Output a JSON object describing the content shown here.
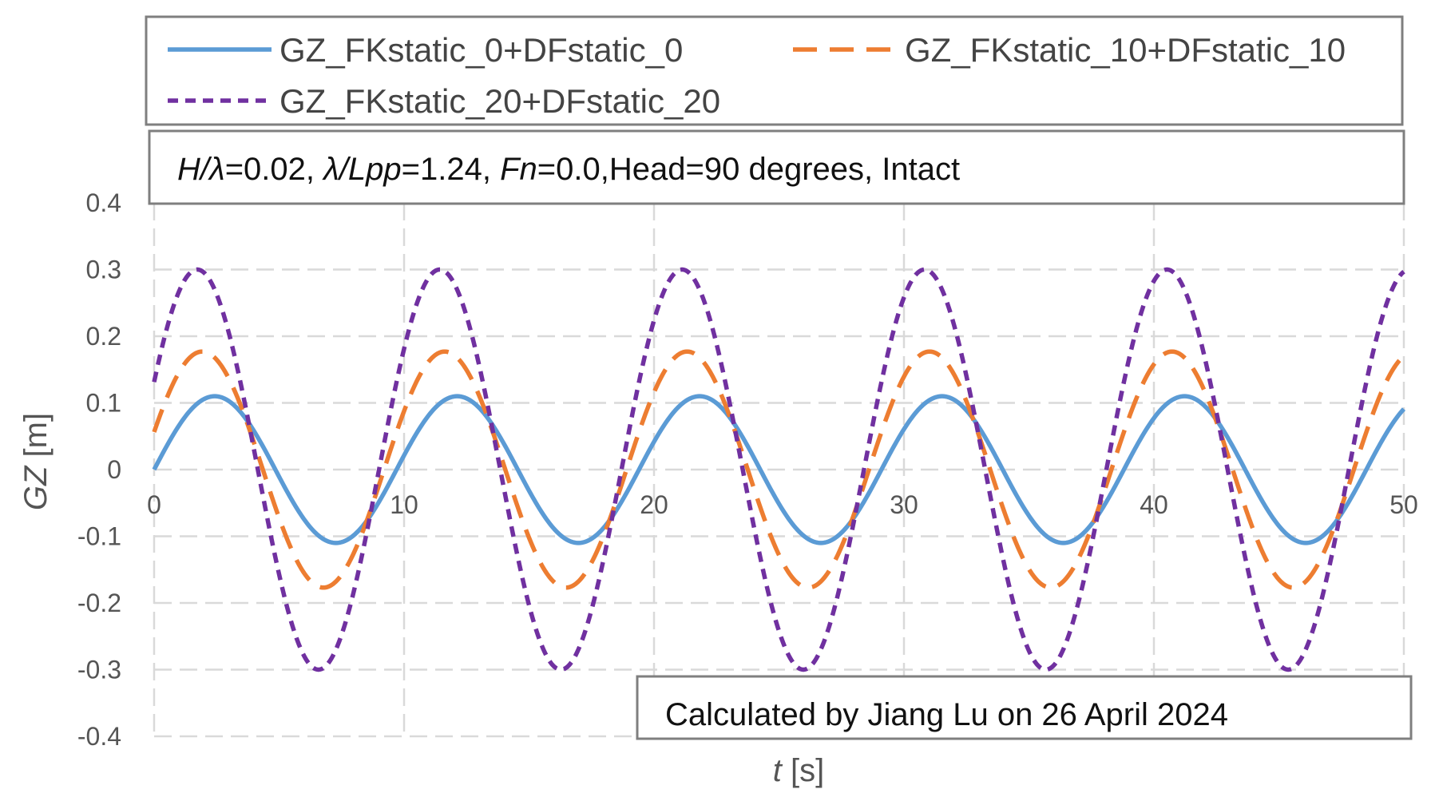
{
  "chart_data": {
    "type": "line",
    "title": "",
    "xlabel_var": "t",
    "xlabel_unit": " [s]",
    "ylabel_var": "GZ",
    "ylabel_unit": " [m]",
    "xlim": [
      0,
      50
    ],
    "ylim": [
      -0.4,
      0.4
    ],
    "x_ticks": [
      "0",
      "10",
      "20",
      "30",
      "40",
      "50"
    ],
    "y_ticks": [
      "0.4",
      "0.3",
      "0.2",
      "0.1",
      "0",
      "-0.1",
      "-0.2",
      "-0.3",
      "-0.4"
    ],
    "grid": true,
    "legend_position": "top",
    "period": 9.7,
    "series": [
      {
        "name": "GZ_FKstatic_0+DFstatic_0",
        "amplitude": 0.11,
        "phase_shift": 0.0,
        "color": "#5B9BD5",
        "dash": "solid"
      },
      {
        "name": "GZ_FKstatic_10+DFstatic_10",
        "amplitude": 0.177,
        "phase_shift": -0.5,
        "color": "#ED7D31",
        "dash": "long-dash"
      },
      {
        "name": "GZ_FKstatic_20+DFstatic_20",
        "amplitude": 0.3,
        "phase_shift": -0.7,
        "color": "#7030A0",
        "dash": "short-dash"
      }
    ],
    "annotations": {
      "params": [
        {
          "text": "H/λ",
          "italic": true
        },
        {
          "text": "=0.02, ",
          "italic": false
        },
        {
          "text": "λ/Lpp",
          "italic": true
        },
        {
          "text": "=1.24, ",
          "italic": false
        },
        {
          "text": "Fn",
          "italic": true
        },
        {
          "text": "=0.0,Head=90 degrees, Intact",
          "italic": false
        }
      ],
      "credit": "Calculated by Jiang Lu on 26  April 2024"
    }
  }
}
